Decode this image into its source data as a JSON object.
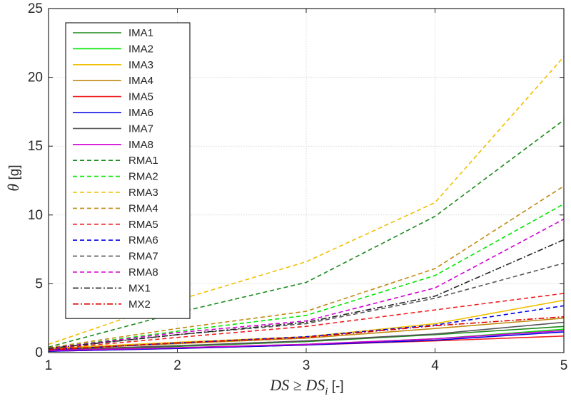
{
  "chart_data": {
    "type": "line",
    "title": "",
    "xlabel": "DS ≥ DS",
    "xlabel_sub": "i",
    "xlabel_unit": " [-]",
    "ylabel": "θ",
    "ylabel_unit": " [g]",
    "x": [
      1,
      2,
      3,
      4,
      5
    ],
    "xlim": [
      1,
      5
    ],
    "ylim": [
      0,
      25
    ],
    "xticks": [
      "1",
      "2",
      "3",
      "4",
      "5"
    ],
    "yticks": [
      "0",
      "5",
      "10",
      "15",
      "20",
      "25"
    ],
    "grid": true,
    "legend_position": "top-left",
    "series": [
      {
        "name": "IMA1",
        "color": "#1a8a1a",
        "style": "solid",
        "values": [
          0.15,
          0.45,
          0.8,
          1.3,
          1.9
        ]
      },
      {
        "name": "IMA2",
        "color": "#00e600",
        "style": "solid",
        "values": [
          0.1,
          0.35,
          0.6,
          1.0,
          1.7
        ]
      },
      {
        "name": "IMA3",
        "color": "#f0c000",
        "style": "solid",
        "values": [
          0.3,
          0.75,
          1.15,
          2.1,
          3.8
        ]
      },
      {
        "name": "IMA4",
        "color": "#c08a10",
        "style": "solid",
        "values": [
          0.25,
          0.65,
          1.05,
          1.75,
          2.5
        ]
      },
      {
        "name": "IMA5",
        "color": "#f02020",
        "style": "solid",
        "values": [
          0.1,
          0.3,
          0.55,
          0.85,
          1.2
        ]
      },
      {
        "name": "IMA6",
        "color": "#0000e0",
        "style": "solid",
        "values": [
          0.1,
          0.3,
          0.55,
          0.9,
          1.5
        ]
      },
      {
        "name": "IMA7",
        "color": "#555555",
        "style": "solid",
        "values": [
          0.2,
          0.5,
          0.85,
          1.35,
          2.2
        ]
      },
      {
        "name": "IMA8",
        "color": "#d000d0",
        "style": "solid",
        "values": [
          0.15,
          0.35,
          0.6,
          1.0,
          1.6
        ]
      },
      {
        "name": "RMA1",
        "color": "#1a8a1a",
        "style": "dashed",
        "values": [
          0.4,
          2.9,
          5.1,
          9.9,
          16.9
        ]
      },
      {
        "name": "RMA2",
        "color": "#00e600",
        "style": "dashed",
        "values": [
          0.3,
          1.55,
          2.7,
          5.6,
          10.8
        ]
      },
      {
        "name": "RMA3",
        "color": "#f0c000",
        "style": "dashed",
        "values": [
          0.6,
          3.8,
          6.6,
          10.9,
          21.5
        ]
      },
      {
        "name": "RMA4",
        "color": "#c08a10",
        "style": "dashed",
        "values": [
          0.35,
          1.75,
          3.0,
          6.1,
          12.1
        ]
      },
      {
        "name": "RMA5",
        "color": "#f02020",
        "style": "dashed",
        "values": [
          0.25,
          1.1,
          1.9,
          3.1,
          4.3
        ]
      },
      {
        "name": "RMA6",
        "color": "#0000e0",
        "style": "dashed",
        "values": [
          0.2,
          0.7,
          1.15,
          2.0,
          3.4
        ]
      },
      {
        "name": "RMA7",
        "color": "#555555",
        "style": "dashed",
        "values": [
          0.3,
          1.3,
          2.1,
          3.95,
          6.5
        ]
      },
      {
        "name": "RMA8",
        "color": "#d000d0",
        "style": "dashed",
        "values": [
          0.3,
          1.45,
          2.3,
          4.7,
          9.7
        ]
      },
      {
        "name": "MX1",
        "color": "#222222",
        "style": "dashdot",
        "values": [
          0.3,
          1.3,
          2.2,
          4.1,
          8.2
        ]
      },
      {
        "name": "MX2",
        "color": "#e00000",
        "style": "dashdot",
        "values": [
          0.2,
          0.7,
          1.1,
          1.95,
          2.6
        ]
      }
    ]
  }
}
